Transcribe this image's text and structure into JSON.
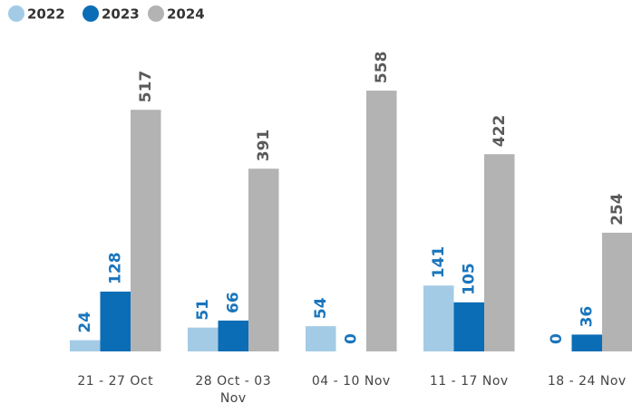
{
  "chart_data": {
    "type": "bar",
    "categories": [
      "21 - 27 Oct",
      "28 Oct - 03 Nov",
      "04 - 10 Nov",
      "11 - 17 Nov",
      "18 - 24 Nov"
    ],
    "series": [
      {
        "name": "2022",
        "color": "#a3cbe6",
        "label_color": "#1a75bc",
        "values": [
          24,
          51,
          54,
          141,
          0
        ]
      },
      {
        "name": "2023",
        "color": "#0b6db5",
        "label_color": "#1a75bc",
        "values": [
          128,
          66,
          0,
          105,
          36
        ]
      },
      {
        "name": "2024",
        "color": "#b3b3b3",
        "label_color": "#5a5a5a",
        "values": [
          517,
          391,
          558,
          422,
          254
        ]
      }
    ],
    "legend": "top-left"
  }
}
